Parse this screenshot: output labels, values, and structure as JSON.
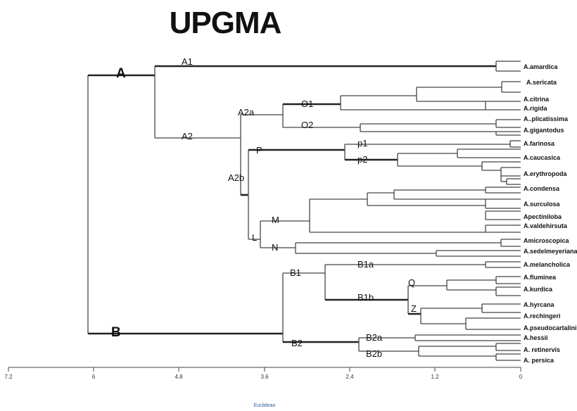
{
  "title": "UPGMA",
  "axis": {
    "ticks": [
      "7.2",
      "6",
      "4.8",
      "3.6",
      "2.4",
      "1.2",
      "0"
    ],
    "title": "Euclidean"
  },
  "leaves": [
    "A.amardica",
    "A.sericata",
    "A.citrina",
    "A.rigida",
    "A..plicatissima",
    "A.gigantodus",
    "A.farinosa",
    "A.caucasica",
    "A.erythropoda",
    "A.condensa",
    "A.surculosa",
    "Apectiniloba",
    "A.valdehirsuta",
    "Amicroscopica",
    "A.sedelmeyeriana",
    "A.melancholica",
    "A.fluminea",
    "A.kurdica",
    "A.hyrcana",
    "A.rechingeri",
    "A.pseudocartalini",
    "A.hessii",
    "A. retinervis",
    "A. persica"
  ],
  "clades": [
    "A",
    "A1",
    "A2",
    "A2a",
    "O1",
    "O2",
    "A2b",
    "P",
    "p1",
    "p2",
    "L",
    "M",
    "N",
    "B",
    "B1",
    "B1a",
    "B1b",
    "Q",
    "Z",
    "B2",
    "B2a",
    "B2b"
  ]
}
